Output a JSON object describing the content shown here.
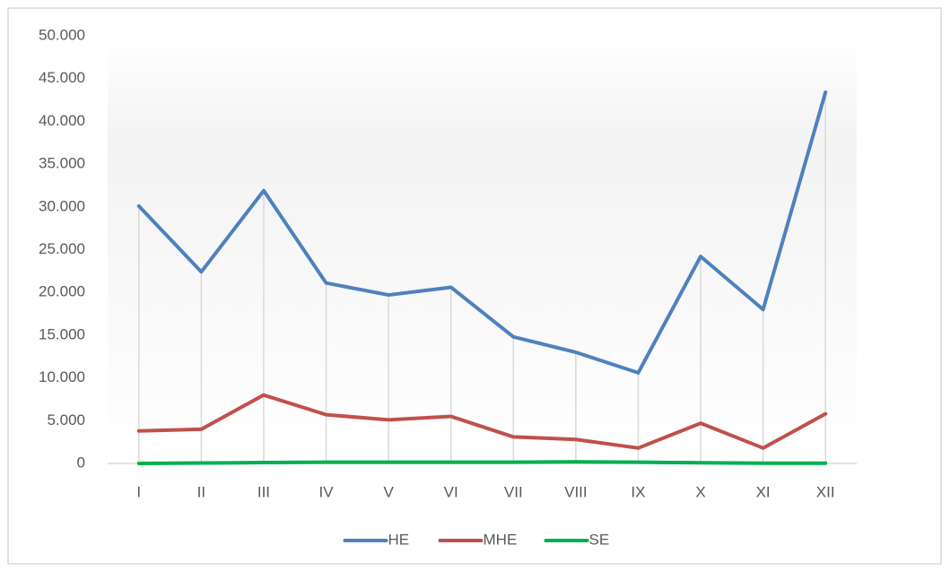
{
  "chart_data": {
    "type": "line",
    "categories": [
      "I",
      "II",
      "III",
      "IV",
      "V",
      "VI",
      "VII",
      "VIII",
      "IX",
      "X",
      "XI",
      "XII"
    ],
    "series": [
      {
        "name": "HE",
        "color": "#4f81bd",
        "values": [
          30100,
          22400,
          31900,
          21100,
          19700,
          20600,
          14800,
          13000,
          10600,
          24200,
          18000,
          43400
        ]
      },
      {
        "name": "MHE",
        "color": "#c0504d",
        "values": [
          3800,
          4000,
          8000,
          5700,
          5100,
          5500,
          3100,
          2800,
          1800,
          4700,
          1800,
          5800
        ]
      },
      {
        "name": "SE",
        "color": "#00b050",
        "values": [
          0,
          50,
          100,
          150,
          150,
          150,
          150,
          180,
          150,
          80,
          30,
          30
        ]
      }
    ],
    "ylim": [
      0,
      50000
    ],
    "yticks": [
      0,
      {
        "value": 5000,
        "label": "5.000"
      },
      {
        "value": 10000,
        "label": "10.000"
      },
      {
        "value": 15000,
        "label": "15.000"
      },
      {
        "value": 20000,
        "label": "20.000"
      },
      {
        "value": 25000,
        "label": "25.000"
      },
      {
        "value": 30000,
        "label": "30.000"
      },
      {
        "value": 35000,
        "label": "35.000"
      },
      {
        "value": 40000,
        "label": "40.000"
      },
      {
        "value": 45000,
        "label": "45.000"
      },
      {
        "value": 50000,
        "label": "50.000"
      }
    ],
    "drop_lines": true,
    "legend": "bottom"
  }
}
